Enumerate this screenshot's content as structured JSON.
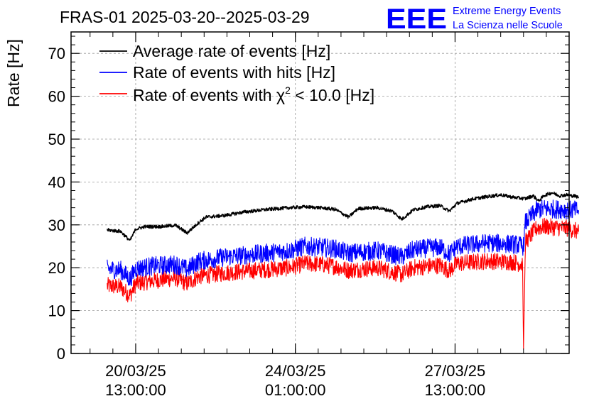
{
  "header": {
    "title": "FRAS-01 2025-03-20--2025-03-29",
    "logo_text": "EEE",
    "logo_line1": "Extreme Energy Events",
    "logo_line2": "La Scienza nelle Scuole"
  },
  "colors": {
    "black": "#000000",
    "blue": "#0000ff",
    "red": "#ff0000",
    "grid": "#9a9a9a"
  },
  "chart_data": {
    "type": "line",
    "title": "FRAS-01 2025-03-20--2025-03-29",
    "ylabel": "Rate [Hz]",
    "xlabel": "",
    "ylim": [
      0,
      75
    ],
    "xlim": [
      "2025-03-19T03:00",
      "2025-03-30T01:00"
    ],
    "yticks": [
      0,
      10,
      20,
      30,
      40,
      50,
      60,
      70
    ],
    "xticks": [
      {
        "date": "20/03/25",
        "time": "13:00:00",
        "at": "2025-03-20T13:00"
      },
      {
        "date": "24/03/25",
        "time": "01:00:00",
        "at": "2025-03-24T01:00"
      },
      {
        "date": "27/03/25",
        "time": "13:00:00",
        "at": "2025-03-27T13:00"
      }
    ],
    "grid": true,
    "legend_position": "top-left",
    "legend": {
      "avg": "Average rate of events [Hz]",
      "hits": "Rate of events with hits [Hz]",
      "chi_prefix": "Rate of events with ",
      "chi_symbol": "χ",
      "chi_sup": "2",
      "chi_suffix": " < 10.0 [Hz]"
    },
    "series": [
      {
        "key": "avg",
        "name": "Average rate of events [Hz]",
        "color": "#000000",
        "noise": 0.4,
        "points": [
          [
            "2025-03-19T22:00",
            28.8
          ],
          [
            "2025-03-20T05:00",
            28.5
          ],
          [
            "2025-03-20T10:00",
            26.3
          ],
          [
            "2025-03-20T13:00",
            29.0
          ],
          [
            "2025-03-20T18:00",
            29.6
          ],
          [
            "2025-03-21T02:00",
            29.6
          ],
          [
            "2025-03-21T10:00",
            29.9
          ],
          [
            "2025-03-21T16:00",
            28.1
          ],
          [
            "2025-03-21T22:00",
            30.5
          ],
          [
            "2025-03-22T02:00",
            31.8
          ],
          [
            "2025-03-22T12:00",
            32.2
          ],
          [
            "2025-03-22T22:00",
            33.0
          ],
          [
            "2025-03-23T10:00",
            33.6
          ],
          [
            "2025-03-23T22:00",
            34.0
          ],
          [
            "2025-03-24T06:00",
            34.2
          ],
          [
            "2025-03-24T14:00",
            34.0
          ],
          [
            "2025-03-24T22:00",
            33.6
          ],
          [
            "2025-03-25T05:00",
            31.8
          ],
          [
            "2025-03-25T10:00",
            33.8
          ],
          [
            "2025-03-25T20:00",
            34.0
          ],
          [
            "2025-03-26T04:00",
            33.2
          ],
          [
            "2025-03-26T09:00",
            31.3
          ],
          [
            "2025-03-26T15:00",
            33.5
          ],
          [
            "2025-03-26T22:00",
            34.2
          ],
          [
            "2025-03-27T05:00",
            34.5
          ],
          [
            "2025-03-27T10:00",
            33.2
          ],
          [
            "2025-03-27T14:00",
            35.0
          ],
          [
            "2025-03-27T22:00",
            36.0
          ],
          [
            "2025-03-28T06:00",
            36.6
          ],
          [
            "2025-03-28T13:00",
            37.0
          ],
          [
            "2025-03-28T20:00",
            36.4
          ],
          [
            "2025-03-29T02:00",
            36.1
          ],
          [
            "2025-03-29T06:00",
            36.8
          ],
          [
            "2025-03-29T09:00",
            35.6
          ],
          [
            "2025-03-29T12:00",
            36.9
          ],
          [
            "2025-03-29T16:00",
            37.5
          ],
          [
            "2025-03-29T20:00",
            36.8
          ],
          [
            "2025-03-30T00:00",
            37.0
          ],
          [
            "2025-03-30T02:00",
            36.8
          ],
          [
            "2025-03-30T03:00",
            36.8
          ],
          [
            "2025-03-30T05:00",
            36.6
          ],
          [
            "2025-03-30T06:00",
            36.5
          ]
        ]
      },
      {
        "key": "hits",
        "name": "Rate of events with hits [Hz]",
        "color": "#0000ff",
        "noise": 2.2,
        "points": [
          [
            "2025-03-19T22:00",
            19.7
          ],
          [
            "2025-03-20T05:00",
            19.5
          ],
          [
            "2025-03-20T10:00",
            17.3
          ],
          [
            "2025-03-20T13:00",
            19.8
          ],
          [
            "2025-03-20T22:00",
            20.4
          ],
          [
            "2025-03-21T10:00",
            20.8
          ],
          [
            "2025-03-21T16:00",
            19.6
          ],
          [
            "2025-03-21T22:00",
            21.5
          ],
          [
            "2025-03-22T12:00",
            22.5
          ],
          [
            "2025-03-23T10:00",
            23.4
          ],
          [
            "2025-03-23T22:00",
            24.0
          ],
          [
            "2025-03-24T06:00",
            25.0
          ],
          [
            "2025-03-24T14:00",
            24.8
          ],
          [
            "2025-03-24T22:00",
            24.4
          ],
          [
            "2025-03-25T05:00",
            23.4
          ],
          [
            "2025-03-25T20:00",
            24.0
          ],
          [
            "2025-03-26T09:00",
            22.5
          ],
          [
            "2025-03-26T15:00",
            24.2
          ],
          [
            "2025-03-27T05:00",
            24.8
          ],
          [
            "2025-03-27T10:00",
            23.2
          ],
          [
            "2025-03-27T14:00",
            25.0
          ],
          [
            "2025-03-28T06:00",
            25.8
          ],
          [
            "2025-03-28T20:00",
            25.5
          ],
          [
            "2025-03-29T01:00",
            25.0
          ],
          [
            "2025-03-29T02:00",
            30.5
          ],
          [
            "2025-03-29T08:00",
            33.5
          ],
          [
            "2025-03-29T12:00",
            33.8
          ],
          [
            "2025-03-30T00:00",
            33.5
          ],
          [
            "2025-03-30T06:00",
            33.4
          ]
        ]
      },
      {
        "key": "chi",
        "name": "Rate of events with χ2 < 10.0 [Hz]",
        "color": "#ff0000",
        "noise": 2.0,
        "points": [
          [
            "2025-03-19T22:00",
            15.8
          ],
          [
            "2025-03-20T05:00",
            15.5
          ],
          [
            "2025-03-20T10:00",
            13.5
          ],
          [
            "2025-03-20T13:00",
            16.3
          ],
          [
            "2025-03-20T22:00",
            17.0
          ],
          [
            "2025-03-21T10:00",
            17.6
          ],
          [
            "2025-03-21T16:00",
            16.3
          ],
          [
            "2025-03-21T22:00",
            18.0
          ],
          [
            "2025-03-22T12:00",
            18.8
          ],
          [
            "2025-03-23T10:00",
            19.6
          ],
          [
            "2025-03-23T22:00",
            20.0
          ],
          [
            "2025-03-24T06:00",
            21.0
          ],
          [
            "2025-03-24T14:00",
            20.8
          ],
          [
            "2025-03-24T22:00",
            20.3
          ],
          [
            "2025-03-25T05:00",
            19.4
          ],
          [
            "2025-03-25T20:00",
            20.0
          ],
          [
            "2025-03-26T09:00",
            18.4
          ],
          [
            "2025-03-26T15:00",
            20.0
          ],
          [
            "2025-03-27T05:00",
            20.6
          ],
          [
            "2025-03-27T10:00",
            19.3
          ],
          [
            "2025-03-27T14:00",
            21.0
          ],
          [
            "2025-03-28T06:00",
            21.6
          ],
          [
            "2025-03-28T20:00",
            21.3
          ],
          [
            "2025-03-29T00:30",
            20.8
          ],
          [
            "2025-03-29T01:00",
            1.0
          ],
          [
            "2025-03-29T02:00",
            26.0
          ],
          [
            "2025-03-29T08:00",
            29.3
          ],
          [
            "2025-03-29T12:00",
            29.6
          ],
          [
            "2025-03-30T00:00",
            29.2
          ],
          [
            "2025-03-30T06:00",
            28.4
          ]
        ]
      }
    ]
  }
}
